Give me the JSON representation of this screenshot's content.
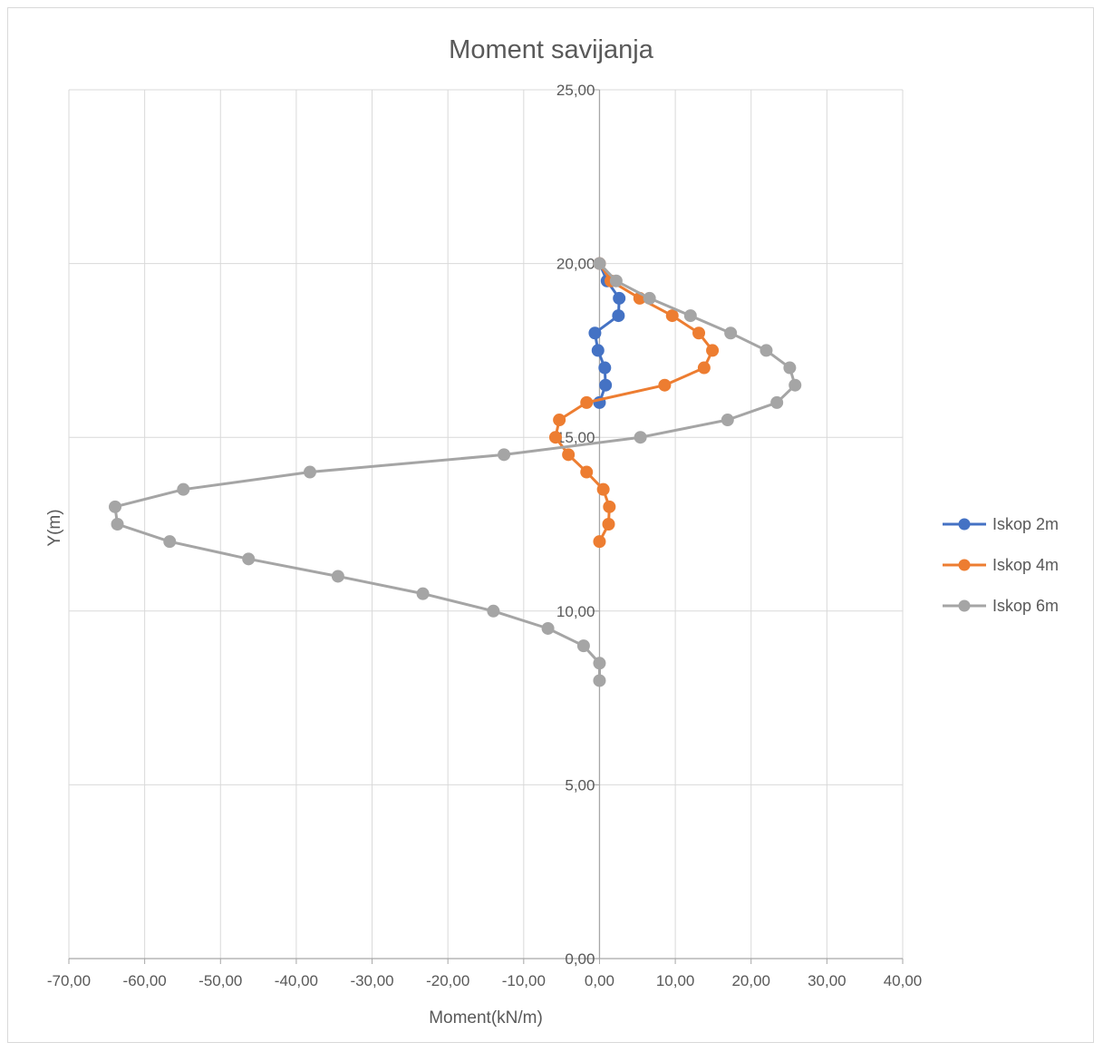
{
  "chart_data": {
    "type": "scatter",
    "title": "Moment savijanja",
    "xlabel": "Moment(kN/m)",
    "ylabel": "Y(m)",
    "xlim": [
      -70,
      40
    ],
    "ylim": [
      0,
      25
    ],
    "x_ticks": [
      -70,
      -60,
      -50,
      -40,
      -30,
      -20,
      -10,
      0,
      10,
      20,
      30,
      40
    ],
    "y_ticks": [
      0,
      5,
      10,
      15,
      20,
      25
    ],
    "x_tick_labels": [
      "-70,00",
      "-60,00",
      "-50,00",
      "-40,00",
      "-30,00",
      "-20,00",
      "-10,00",
      "0,00",
      "10,00",
      "20,00",
      "30,00",
      "40,00"
    ],
    "y_tick_labels": [
      "0,00",
      "5,00",
      "10,00",
      "15,00",
      "20,00",
      "25,00"
    ],
    "grid": true,
    "legend_position": "right",
    "series": [
      {
        "name": "Iskop 2m",
        "color": "#4472C4",
        "points": [
          {
            "x": 0,
            "y": 20
          },
          {
            "x": 1.0,
            "y": 19.5
          },
          {
            "x": 2.6,
            "y": 19.0
          },
          {
            "x": 2.5,
            "y": 18.5
          },
          {
            "x": -0.6,
            "y": 18.0
          },
          {
            "x": -0.2,
            "y": 17.5
          },
          {
            "x": 0.7,
            "y": 17.0
          },
          {
            "x": 0.8,
            "y": 16.5
          },
          {
            "x": 0.0,
            "y": 16.0
          }
        ]
      },
      {
        "name": "Iskop 4m",
        "color": "#ED7D31",
        "points": [
          {
            "x": 0,
            "y": 20
          },
          {
            "x": 1.5,
            "y": 19.5
          },
          {
            "x": 5.3,
            "y": 19.0
          },
          {
            "x": 9.6,
            "y": 18.5
          },
          {
            "x": 13.1,
            "y": 18.0
          },
          {
            "x": 14.9,
            "y": 17.5
          },
          {
            "x": 13.8,
            "y": 17.0
          },
          {
            "x": 8.6,
            "y": 16.5
          },
          {
            "x": -1.7,
            "y": 16.0
          },
          {
            "x": -5.3,
            "y": 15.5
          },
          {
            "x": -5.8,
            "y": 15.0
          },
          {
            "x": -4.1,
            "y": 14.5
          },
          {
            "x": -1.7,
            "y": 14.0
          },
          {
            "x": 0.5,
            "y": 13.5
          },
          {
            "x": 1.3,
            "y": 13.0
          },
          {
            "x": 1.2,
            "y": 12.5
          },
          {
            "x": 0.0,
            "y": 12.0
          }
        ]
      },
      {
        "name": "Iskop 6m",
        "color": "#A5A5A5",
        "points": [
          {
            "x": 0,
            "y": 20
          },
          {
            "x": 2.2,
            "y": 19.5
          },
          {
            "x": 6.6,
            "y": 19.0
          },
          {
            "x": 12.0,
            "y": 18.5
          },
          {
            "x": 17.3,
            "y": 18.0
          },
          {
            "x": 22.0,
            "y": 17.5
          },
          {
            "x": 25.1,
            "y": 17.0
          },
          {
            "x": 25.8,
            "y": 16.5
          },
          {
            "x": 23.4,
            "y": 16.0
          },
          {
            "x": 16.9,
            "y": 15.5
          },
          {
            "x": 5.4,
            "y": 15.0
          },
          {
            "x": -12.6,
            "y": 14.5
          },
          {
            "x": -38.2,
            "y": 14.0
          },
          {
            "x": -54.9,
            "y": 13.5
          },
          {
            "x": -63.9,
            "y": 13.0
          },
          {
            "x": -63.6,
            "y": 12.5
          },
          {
            "x": -56.7,
            "y": 12.0
          },
          {
            "x": -46.3,
            "y": 11.5
          },
          {
            "x": -34.5,
            "y": 11.0
          },
          {
            "x": -23.3,
            "y": 10.5
          },
          {
            "x": -14.0,
            "y": 10.0
          },
          {
            "x": -6.8,
            "y": 9.5
          },
          {
            "x": -2.1,
            "y": 9.0
          },
          {
            "x": 0.0,
            "y": 8.5
          },
          {
            "x": 0.0,
            "y": 8.0
          }
        ]
      }
    ]
  }
}
